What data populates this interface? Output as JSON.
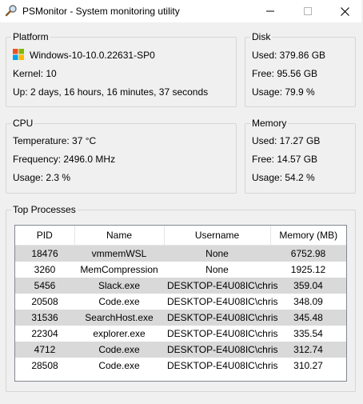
{
  "window": {
    "title": "PSMonitor - System monitoring utility",
    "icon": "magnifier-icon"
  },
  "platform": {
    "title": "Platform",
    "os": "Windows-10-10.0.22631-SP0",
    "os_icon": "windows-logo-icon",
    "kernel": "Kernel: 10",
    "uptime": "Up: 2 days, 16 hours, 16 minutes, 37 seconds"
  },
  "disk": {
    "title": "Disk",
    "used": "Used: 379.86 GB",
    "free": "Free: 95.56 GB",
    "usage": "Usage: 79.9 %"
  },
  "cpu": {
    "title": "CPU",
    "temperature": "Temperature: 37 °C",
    "frequency": "Frequency: 2496.0 MHz",
    "usage": "Usage: 2.3 %"
  },
  "memory": {
    "title": "Memory",
    "used": "Used: 17.27 GB",
    "free": "Free: 14.57 GB",
    "usage": "Usage: 54.2 %"
  },
  "processes": {
    "title": "Top Processes",
    "columns": [
      "PID",
      "Name",
      "Username",
      "Memory (MB)"
    ],
    "rows": [
      [
        "18476",
        "vmmemWSL",
        "None",
        "6752.98"
      ],
      [
        "3260",
        "MemCompression",
        "None",
        "1925.12"
      ],
      [
        "5456",
        "Slack.exe",
        "DESKTOP-E4U08IC\\chris",
        "359.04"
      ],
      [
        "20508",
        "Code.exe",
        "DESKTOP-E4U08IC\\chris",
        "348.09"
      ],
      [
        "31536",
        "SearchHost.exe",
        "DESKTOP-E4U08IC\\chris",
        "345.48"
      ],
      [
        "22304",
        "explorer.exe",
        "DESKTOP-E4U08IC\\chris",
        "335.54"
      ],
      [
        "4712",
        "Code.exe",
        "DESKTOP-E4U08IC\\chris",
        "312.74"
      ],
      [
        "28508",
        "Code.exe",
        "DESKTOP-E4U08IC\\chris",
        "310.27"
      ]
    ]
  }
}
